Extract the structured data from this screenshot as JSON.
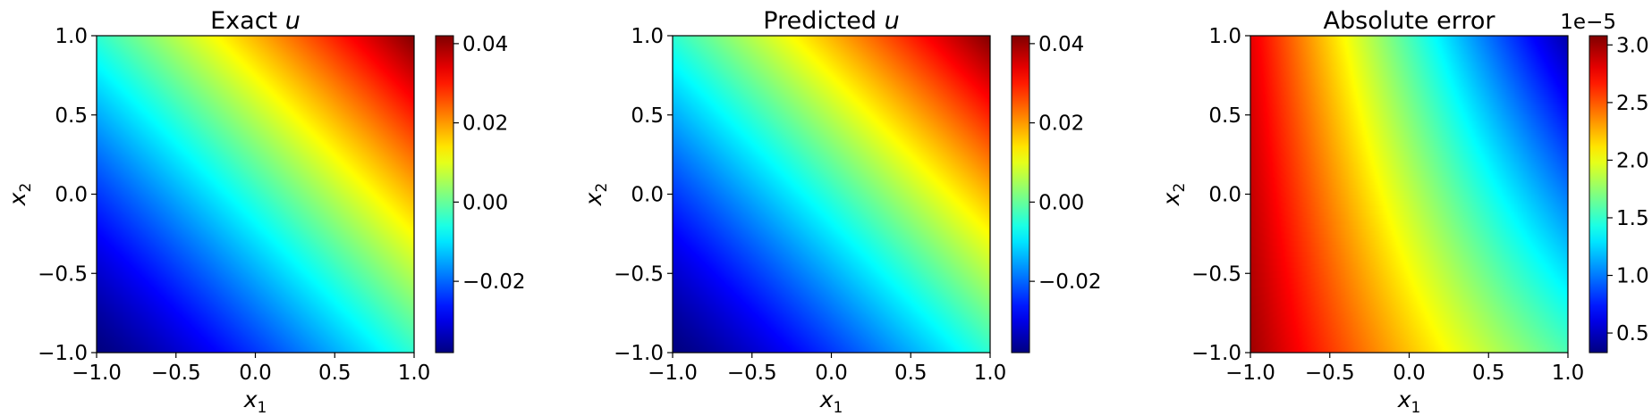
{
  "chart_data": [
    {
      "type": "heatmap",
      "title_text": "Exact ",
      "title_var": "u",
      "xlabel": "x",
      "xlabel_sub": "1",
      "ylabel": "x",
      "ylabel_sub": "2",
      "xlim": [
        -1.0,
        1.0
      ],
      "ylim": [
        -1.0,
        1.0
      ],
      "xticks": [
        "−1.0",
        "−0.5",
        "0.0",
        "0.5",
        "1.0"
      ],
      "yticks": [
        "−1.0",
        "−0.5",
        "0.0",
        "0.5",
        "1.0"
      ],
      "colormap": "jet",
      "colorbar": {
        "range": [
          -0.038,
          0.042
        ],
        "ticks": [
          -0.02,
          0.0,
          0.02,
          0.04
        ],
        "tick_labels": [
          "−0.02",
          "0.00",
          "0.02",
          "0.04"
        ],
        "offset_label": ""
      },
      "field": "diagonal-gradient: minimum at (-1,-1), maximum at (1,1)"
    },
    {
      "type": "heatmap",
      "title_text": "Predicted ",
      "title_var": "u",
      "xlabel": "x",
      "xlabel_sub": "1",
      "ylabel": "x",
      "ylabel_sub": "2",
      "xlim": [
        -1.0,
        1.0
      ],
      "ylim": [
        -1.0,
        1.0
      ],
      "xticks": [
        "−1.0",
        "−0.5",
        "0.0",
        "0.5",
        "1.0"
      ],
      "yticks": [
        "−1.0",
        "−0.5",
        "0.0",
        "0.5",
        "1.0"
      ],
      "colormap": "jet",
      "colorbar": {
        "range": [
          -0.038,
          0.042
        ],
        "ticks": [
          -0.02,
          0.0,
          0.02,
          0.04
        ],
        "tick_labels": [
          "−0.02",
          "0.00",
          "0.02",
          "0.04"
        ],
        "offset_label": ""
      },
      "field": "diagonal-gradient: minimum at (-1,-1), maximum at (1,1)"
    },
    {
      "type": "heatmap",
      "title_text": "Absolute error",
      "title_var": "",
      "xlabel": "x",
      "xlabel_sub": "1",
      "ylabel": "x",
      "ylabel_sub": "2",
      "xlim": [
        -1.0,
        1.0
      ],
      "ylim": [
        -1.0,
        1.0
      ],
      "xticks": [
        "−1.0",
        "−0.5",
        "0.0",
        "0.5",
        "1.0"
      ],
      "yticks": [
        "−1.0",
        "−0.5",
        "0.0",
        "0.5",
        "1.0"
      ],
      "colormap": "jet",
      "colorbar": {
        "range": [
          0.33,
          3.08
        ],
        "ticks": [
          0.5,
          1.0,
          1.5,
          2.0,
          2.5,
          3.0
        ],
        "tick_labels": [
          "0.5",
          "1.0",
          "1.5",
          "2.0",
          "2.5",
          "3.0"
        ],
        "offset_label": "1e−5"
      },
      "field": "error: maximum near x1=-1, decreasing toward upper-right minimum"
    }
  ]
}
